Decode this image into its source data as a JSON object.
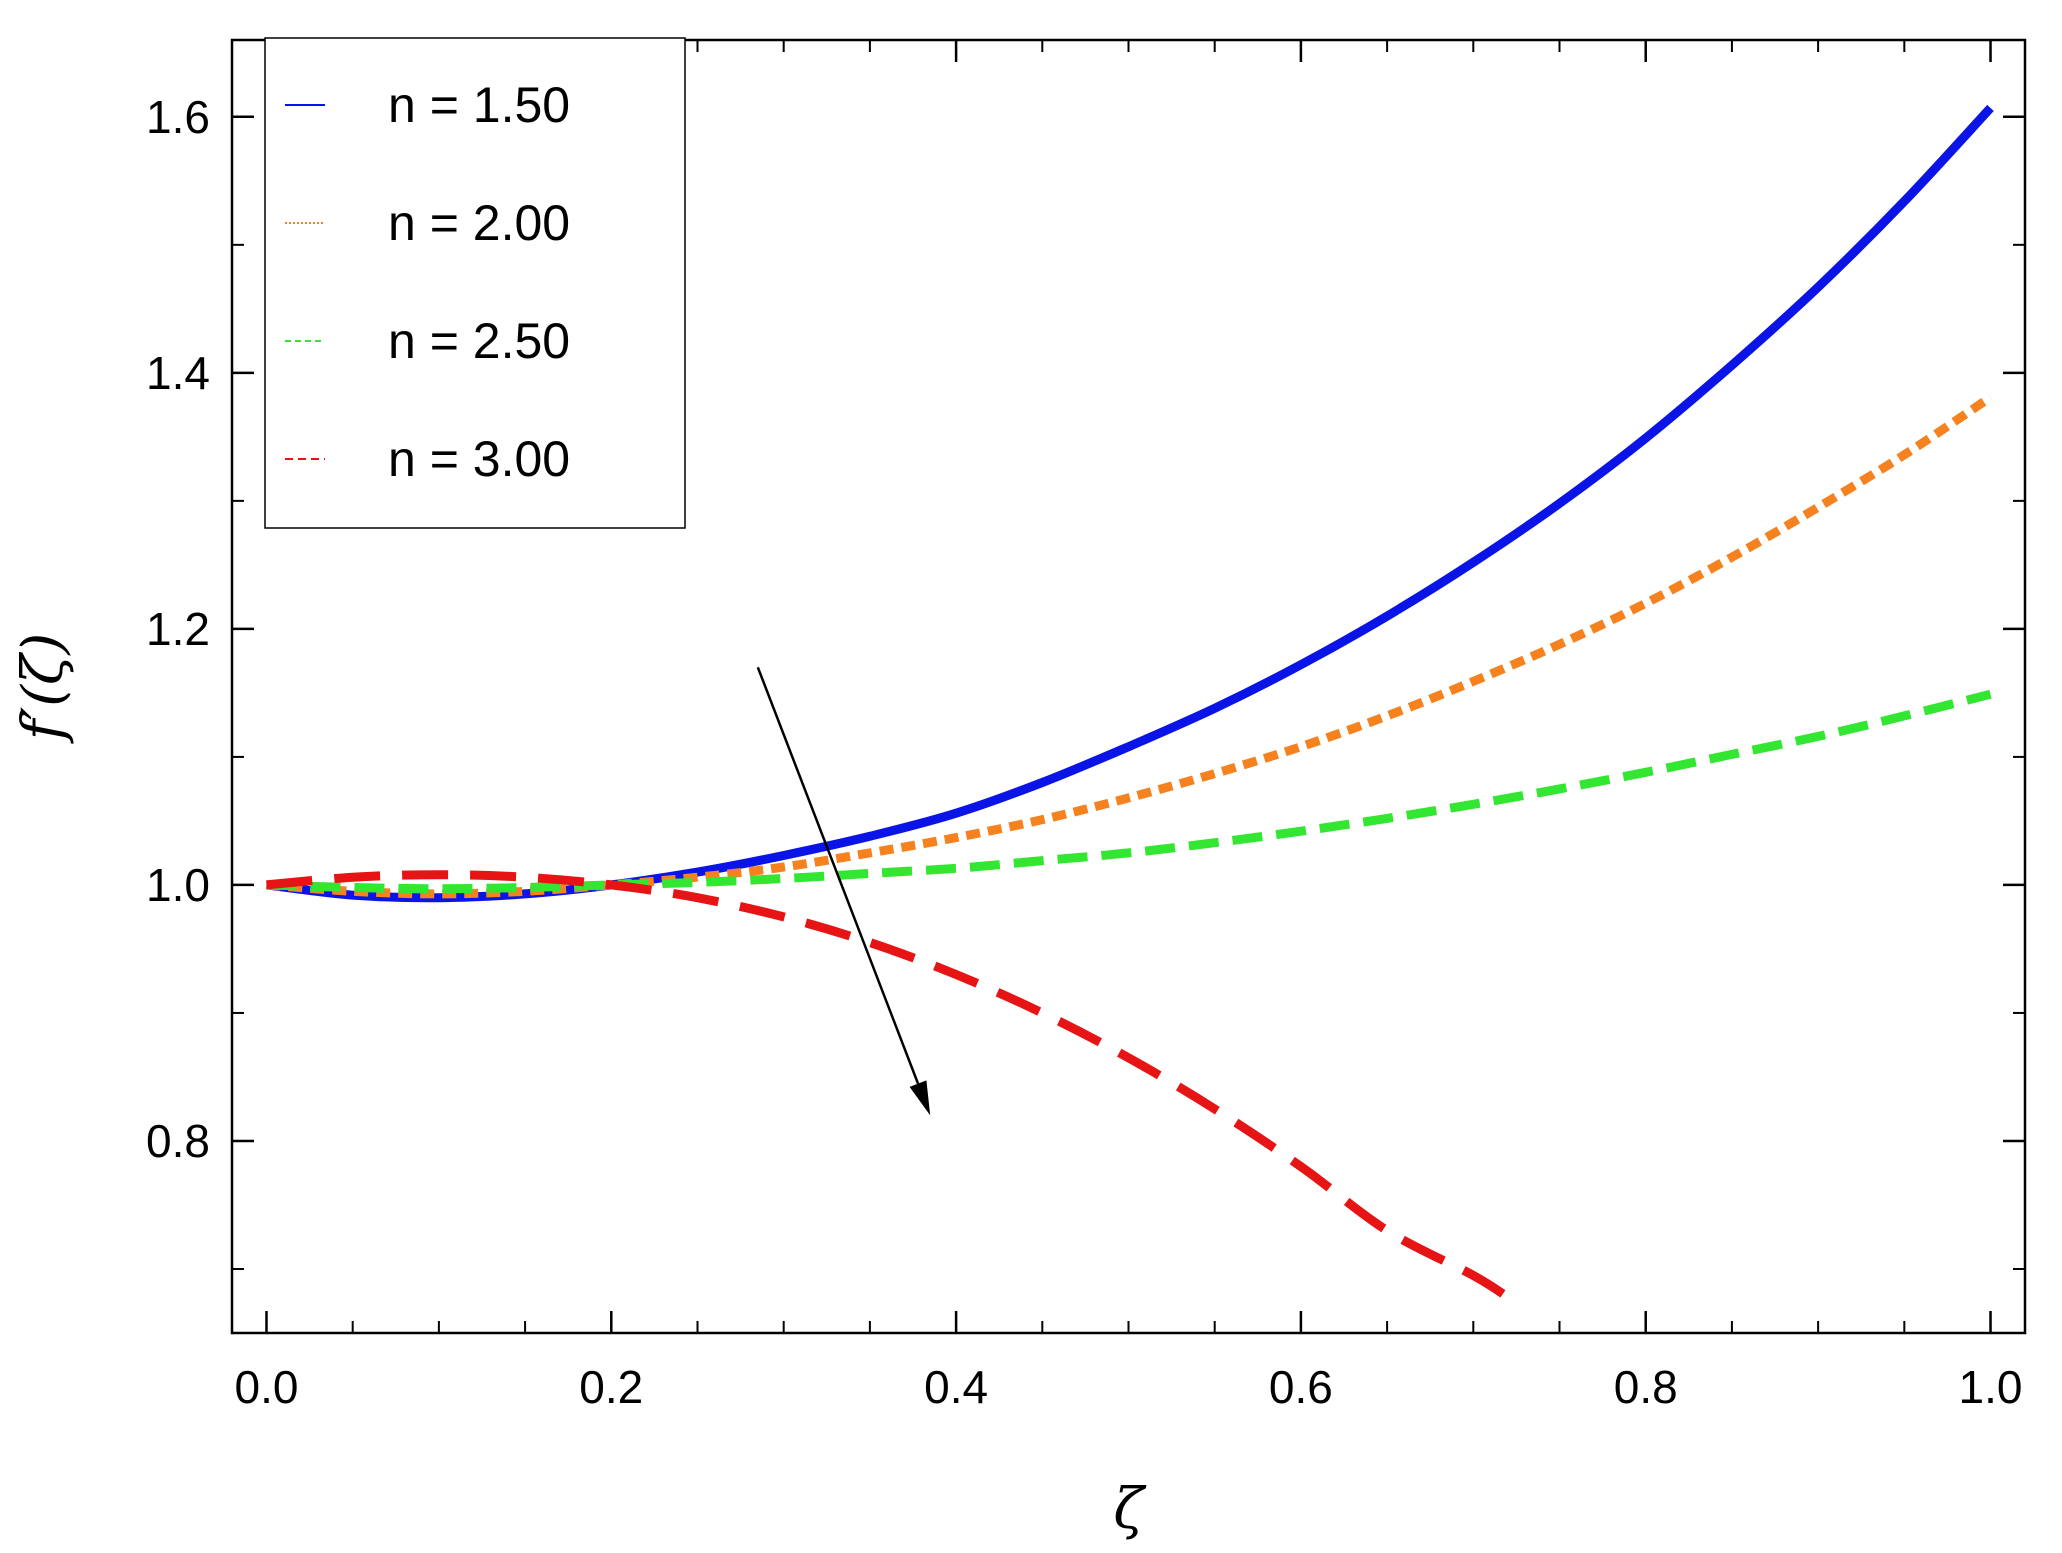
{
  "chart_data": {
    "type": "line",
    "title": "",
    "xlabel": "ζ",
    "ylabel": "f′(ζ)",
    "xlim": [
      -0.02,
      1.02
    ],
    "ylim": [
      0.65,
      1.66
    ],
    "x_ticks": [
      {
        "value": 0.0,
        "label": "0.0"
      },
      {
        "value": 0.2,
        "label": "0.2"
      },
      {
        "value": 0.4,
        "label": "0.4"
      },
      {
        "value": 0.6,
        "label": "0.6"
      },
      {
        "value": 0.8,
        "label": "0.8"
      },
      {
        "value": 1.0,
        "label": "1.0"
      }
    ],
    "y_ticks": [
      {
        "value": 0.8,
        "label": "0.8"
      },
      {
        "value": 1.0,
        "label": "1.0"
      },
      {
        "value": 1.2,
        "label": "1.2"
      },
      {
        "value": 1.4,
        "label": "1.4"
      },
      {
        "value": 1.6,
        "label": "1.6"
      }
    ],
    "grid": false,
    "legend_position": "top-left",
    "series": [
      {
        "name": "n = 1.50",
        "color": "#0a14e6",
        "dash": "solid",
        "x": [
          0.0,
          0.05,
          0.1,
          0.15,
          0.2,
          0.25,
          0.3,
          0.35,
          0.4,
          0.45,
          0.5,
          0.55,
          0.6,
          0.65,
          0.7,
          0.75,
          0.8,
          0.85,
          0.9,
          0.95,
          1.0
        ],
        "y": [
          1.0,
          0.992,
          0.99,
          0.993,
          1.0,
          1.01,
          1.023,
          1.038,
          1.056,
          1.08,
          1.108,
          1.138,
          1.172,
          1.21,
          1.252,
          1.298,
          1.349,
          1.406,
          1.467,
          1.534,
          1.607
        ]
      },
      {
        "name": "n = 2.00",
        "color": "#f5821e",
        "dash": "dotted",
        "x": [
          0.0,
          0.05,
          0.1,
          0.15,
          0.2,
          0.25,
          0.3,
          0.35,
          0.4,
          0.45,
          0.5,
          0.55,
          0.6,
          0.65,
          0.7,
          0.75,
          0.8,
          0.85,
          0.9,
          0.95,
          1.0
        ],
        "y": [
          1.0,
          0.995,
          0.993,
          0.995,
          1.0,
          1.006,
          1.014,
          1.025,
          1.037,
          1.051,
          1.068,
          1.087,
          1.108,
          1.132,
          1.159,
          1.188,
          1.22,
          1.256,
          1.295,
          1.336,
          1.381
        ]
      },
      {
        "name": "n = 2.50",
        "color": "#32e632",
        "dash": "dashed",
        "x": [
          0.0,
          0.05,
          0.1,
          0.15,
          0.2,
          0.25,
          0.3,
          0.35,
          0.4,
          0.45,
          0.5,
          0.55,
          0.6,
          0.65,
          0.7,
          0.75,
          0.8,
          0.85,
          0.9,
          0.95,
          1.0
        ],
        "y": [
          1.0,
          0.998,
          0.997,
          0.998,
          1.0,
          1.002,
          1.005,
          1.009,
          1.013,
          1.019,
          1.025,
          1.033,
          1.042,
          1.052,
          1.063,
          1.075,
          1.088,
          1.102,
          1.116,
          1.132,
          1.149
        ]
      },
      {
        "name": "n = 3.00",
        "color": "#e61414",
        "dash": "longdash",
        "x": [
          0.0,
          0.05,
          0.1,
          0.15,
          0.2,
          0.25,
          0.3,
          0.35,
          0.4,
          0.45,
          0.5,
          0.55,
          0.6,
          0.65,
          0.7,
          0.72
        ],
        "y": [
          1.0,
          1.006,
          1.008,
          1.006,
          1.0,
          0.99,
          0.975,
          0.955,
          0.93,
          0.9,
          0.865,
          0.825,
          0.78,
          0.73,
          0.695,
          0.678
        ]
      }
    ],
    "annotations": [
      {
        "type": "arrow",
        "from": [
          0.285,
          1.17
        ],
        "to": [
          0.385,
          0.82
        ]
      }
    ]
  }
}
